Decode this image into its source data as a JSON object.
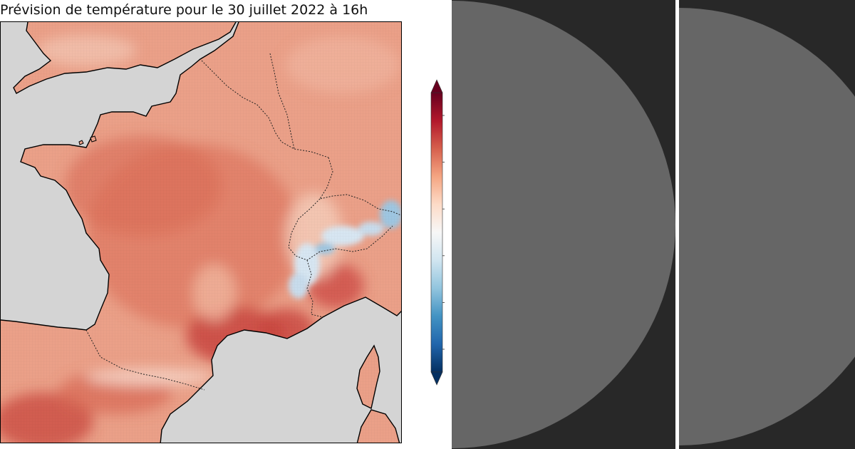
{
  "map": {
    "title": "Prévision de température pour le 30 juillet 2022 à 16h",
    "variable": "temperature",
    "colormap": "RdBu_r",
    "colors": {
      "sea": "#d4d4d4",
      "land_base": "#eba088",
      "warm": "#d7644e",
      "hot": "#c0323c",
      "cool": "#f4c9b6",
      "cold_light": "#d7e6f2",
      "cold": "#9ec6e1",
      "coast": "#000000",
      "border": "#222222"
    }
  },
  "colorbar": {
    "colors": [
      "#053061",
      "#2166ac",
      "#4393c3",
      "#92c5de",
      "#d1e5f0",
      "#f7f7f7",
      "#fddbc7",
      "#f4a582",
      "#d6604d",
      "#b2182b",
      "#67001f"
    ],
    "tick_count": 6,
    "extend": "both"
  },
  "panels": {
    "background": "#282828",
    "disc": "#666666"
  }
}
